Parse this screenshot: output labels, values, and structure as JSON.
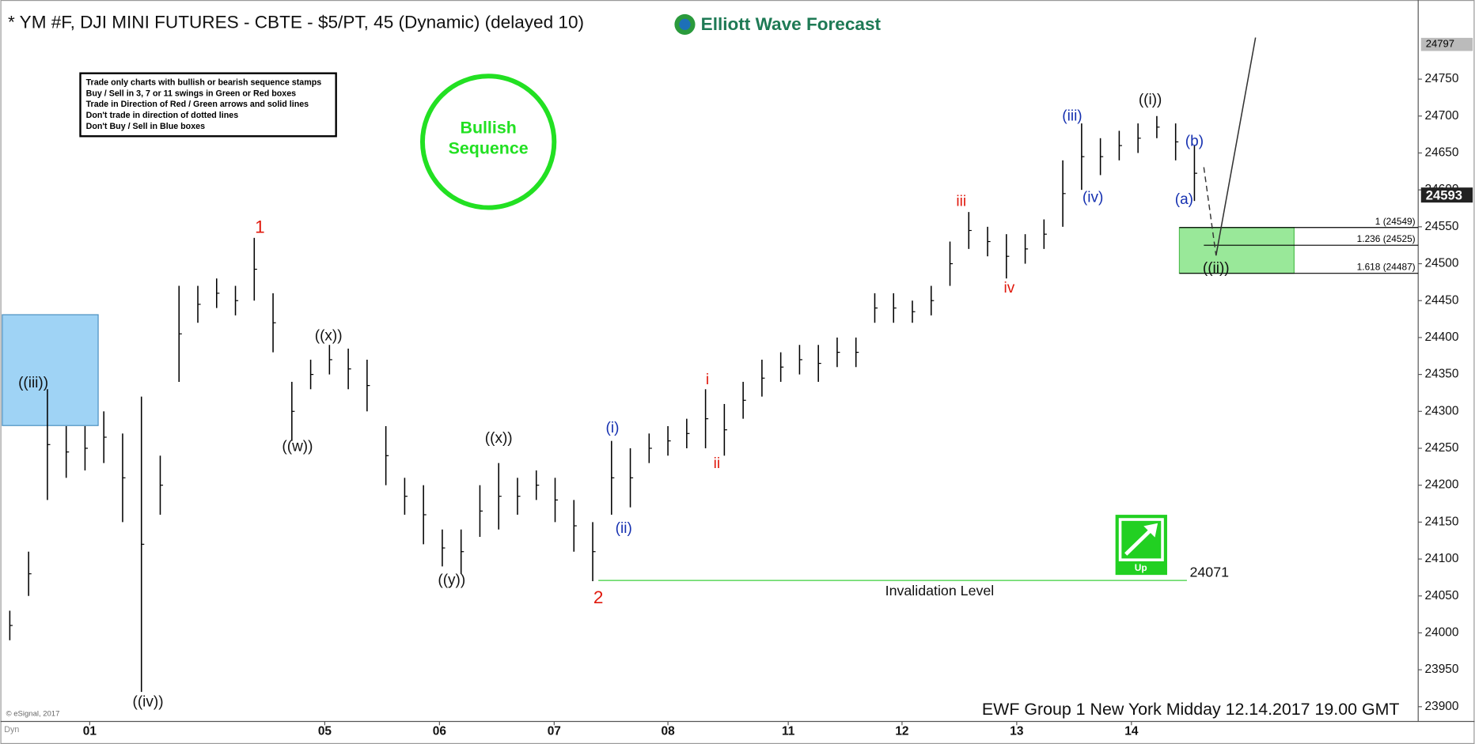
{
  "chart_data": {
    "type": "hilo",
    "title": "* YM #F, DJI MINI FUTURES - CBTE - $5/PT, 45 (Dynamic) (delayed 10)",
    "logo": "Elliott Wave Forecast",
    "rules": [
      "Trade only charts with bullish or bearish sequence stamps",
      "Buy / Sell in 3, 7 or 11 swings in Green or Red boxes",
      "Trade in Direction of Red / Green arrows and solid lines",
      "Don't trade in direction of dotted lines",
      "Don't Buy / Sell in Blue boxes"
    ],
    "stamp": [
      "Bullish",
      "Sequence"
    ],
    "stamp_color": "#22e022",
    "color": "#000000",
    "x": [
      1,
      3,
      5,
      7,
      9,
      11,
      13,
      15,
      17,
      19,
      21,
      23,
      25,
      27,
      29,
      31,
      33,
      35,
      37,
      39,
      41,
      43,
      45,
      47,
      49,
      51,
      53,
      55,
      57,
      59,
      61,
      63,
      65,
      67,
      69,
      71,
      73,
      75,
      77,
      79,
      81,
      83,
      85,
      87,
      89,
      91,
      93,
      95,
      97,
      99,
      101,
      103,
      105,
      107,
      109,
      111,
      113,
      115,
      117,
      119,
      121,
      123,
      125,
      127
    ],
    "high": [
      24030,
      24110,
      24330,
      24280,
      24280,
      24300,
      24270,
      24320,
      24240,
      24470,
      24470,
      24480,
      24470,
      24535,
      24460,
      24340,
      24370,
      24390,
      24385,
      24370,
      24280,
      24210,
      24200,
      24140,
      24140,
      24200,
      24230,
      24210,
      24220,
      24210,
      24180,
      24150,
      24260,
      24250,
      24270,
      24280,
      24290,
      24330,
      24310,
      24340,
      24370,
      24380,
      24390,
      24390,
      24400,
      24400,
      24460,
      24460,
      24450,
      24470,
      24530,
      24570,
      24550,
      24540,
      24540,
      24560,
      24640,
      24690,
      24670,
      24680,
      24690,
      24700,
      24690,
      24660
    ],
    "low": [
      23990,
      24050,
      24180,
      24210,
      24220,
      24230,
      24150,
      23920,
      24160,
      24340,
      24420,
      24440,
      24430,
      24450,
      24380,
      24260,
      24330,
      24350,
      24330,
      24300,
      24200,
      24160,
      24120,
      24090,
      24080,
      24130,
      24140,
      24160,
      24180,
      24150,
      24110,
      24070,
      24160,
      24170,
      24230,
      24240,
      24250,
      24250,
      24240,
      24290,
      24320,
      24340,
      24350,
      24340,
      24360,
      24360,
      24420,
      24420,
      24420,
      24430,
      24470,
      24520,
      24510,
      24480,
      24500,
      24520,
      24550,
      24600,
      24620,
      24640,
      24650,
      24670,
      24640,
      24585
    ],
    "xlim": [
      0,
      150.8
    ],
    "xticks": [
      {
        "value": 9.5,
        "label": "01"
      },
      {
        "value": 34.5,
        "label": "05"
      },
      {
        "value": 46.7,
        "label": "06"
      },
      {
        "value": 58.9,
        "label": "07"
      },
      {
        "value": 71,
        "label": "08"
      },
      {
        "value": 83.8,
        "label": "11"
      },
      {
        "value": 95.9,
        "label": "12"
      },
      {
        "value": 108.1,
        "label": "13"
      },
      {
        "value": 120.3,
        "label": "14"
      }
    ],
    "ylim": [
      23880,
      24847
    ],
    "yticks": [
      23900,
      23950,
      24000,
      24050,
      24100,
      24150,
      24200,
      24250,
      24300,
      24350,
      24400,
      24450,
      24500,
      24550,
      24600,
      24650,
      24700,
      24750
    ],
    "high_tag": 24797,
    "last_price": 24593,
    "fib_levels": [
      {
        "value": 24549,
        "label": "1 (24549)"
      },
      {
        "value": 24525,
        "label": "1.236 (24525)"
      },
      {
        "value": 24487,
        "label": "1.618 (24487)"
      }
    ],
    "invalidation": {
      "value": 24071,
      "text": "Invalidation Level"
    },
    "up_icon": "Up",
    "wave_labels": [
      {
        "text": "1",
        "color": "#e0180c"
      },
      {
        "text": "2",
        "color": "#e0180c"
      },
      {
        "text": "((iii))",
        "color": "#111111"
      },
      {
        "text": "((iv))",
        "color": "#111111"
      },
      {
        "text": "((w))",
        "color": "#111111"
      },
      {
        "text": "((x))",
        "color": "#111111"
      },
      {
        "text": "((x))",
        "color": "#111111"
      },
      {
        "text": "((y))",
        "color": "#111111"
      },
      {
        "text": "(i)",
        "color": "#1530b0"
      },
      {
        "text": "(ii)",
        "color": "#1530b0"
      },
      {
        "text": "i",
        "color": "#e0180c"
      },
      {
        "text": "ii",
        "color": "#e0180c"
      },
      {
        "text": "iii",
        "color": "#e0180c"
      },
      {
        "text": "iv",
        "color": "#e0180c"
      },
      {
        "text": "(iii)",
        "color": "#1530b0"
      },
      {
        "text": "(iv)",
        "color": "#1530b0"
      },
      {
        "text": "((i))",
        "color": "#111111"
      },
      {
        "text": "(b)",
        "color": "#1530b0"
      },
      {
        "text": "(a)",
        "color": "#1530b0"
      },
      {
        "text": "((ii))",
        "color": "#111111"
      }
    ],
    "footer": "EWF Group 1 New York Midday  12.14.2017 19.00 GMT",
    "copyright": "© eSignal, 2017",
    "mode": "Dyn"
  }
}
